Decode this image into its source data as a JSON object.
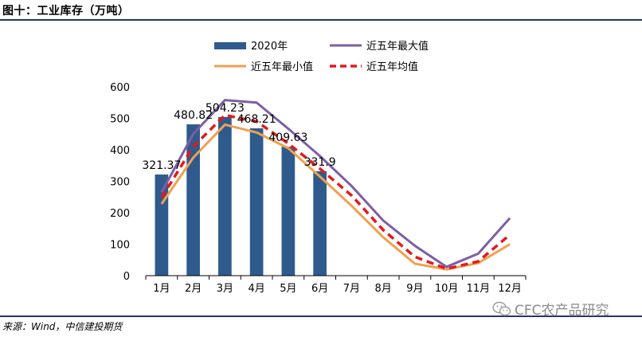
{
  "figure": {
    "title": "图十：工业库存（万吨）",
    "source": "来源：Wind，中信建投期货",
    "watermark": "CFC农产品研究",
    "watermark_icon": "wechat-icon"
  },
  "chart_data": {
    "type": "bar",
    "title": "",
    "xlabel": "",
    "ylabel": "",
    "categories": [
      "1月",
      "2月",
      "3月",
      "4月",
      "5月",
      "6月",
      "7月",
      "8月",
      "9月",
      "10月",
      "11月",
      "12月"
    ],
    "ylim": [
      0,
      600
    ],
    "yticks": [
      0,
      100,
      200,
      300,
      400,
      500,
      600
    ],
    "grid": false,
    "legend_position": "top",
    "series": [
      {
        "name": "2020年",
        "kind": "bar",
        "color": "#2f5b8c",
        "values": [
          321.37,
          480.82,
          504.23,
          468.21,
          409.63,
          331.9,
          null,
          null,
          null,
          null,
          null,
          null
        ],
        "data_labels": [
          "321.37",
          "480.82",
          "504.23",
          "468.21",
          "409.63",
          "331.9",
          null,
          null,
          null,
          null,
          null,
          null
        ]
      },
      {
        "name": "近五年最大值",
        "kind": "line",
        "color": "#7b5fa6",
        "dash": "solid",
        "values": [
          265,
          450,
          558,
          550,
          467,
          380,
          285,
          175,
          95,
          28,
          70,
          183
        ]
      },
      {
        "name": "近五年最小值",
        "kind": "line",
        "color": "#f0a050",
        "dash": "solid",
        "values": [
          228,
          375,
          480,
          455,
          405,
          315,
          222,
          122,
          38,
          20,
          40,
          100
        ]
      },
      {
        "name": "近五年均值",
        "kind": "line",
        "color": "#e31a1c",
        "dash": "dashed",
        "values": [
          248,
          410,
          510,
          490,
          420,
          340,
          255,
          145,
          60,
          22,
          45,
          130
        ]
      }
    ]
  }
}
